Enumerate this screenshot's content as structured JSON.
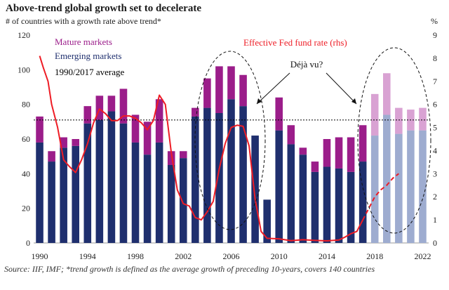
{
  "title": "Above-trend global growth set to decelerate",
  "left_axis_label": "# of countries with a growth rate above trend*",
  "right_axis_label": "%",
  "source": "Source: IIF, IMF; *trend growth is defined as the average growth of preceding 10-years, covers 140 countries",
  "annotations": {
    "deja_vu": "Déjà vu?",
    "fed_label": "Effective Fed fund rate (rhs)"
  },
  "legend": [
    {
      "label": "Mature markets",
      "color": "#9b1d8a"
    },
    {
      "label": "Emerging markets",
      "color": "#1f2f6e"
    },
    {
      "label": "1990/2017 average",
      "color": "#000000"
    }
  ],
  "colors": {
    "emerging": "#1f2f6e",
    "mature": "#9b1d8a",
    "emerging_forecast": "#9eacd0",
    "mature_forecast": "#d9a2d3",
    "fed": "#ee1c25",
    "average": "#000000"
  },
  "chart_data": {
    "type": "bar",
    "stacked": true,
    "x": [
      1990,
      1991,
      1992,
      1993,
      1994,
      1995,
      1996,
      1997,
      1998,
      1999,
      2000,
      2001,
      2002,
      2003,
      2004,
      2005,
      2006,
      2007,
      2008,
      2009,
      2010,
      2011,
      2012,
      2013,
      2014,
      2015,
      2016,
      2017,
      2018,
      2019,
      2020,
      2021,
      2022
    ],
    "x_tick_labels": [
      "1990",
      "1994",
      "1998",
      "2002",
      "2006",
      "2010",
      "2014",
      "2018",
      "2022"
    ],
    "forecast_from": 2018,
    "series": [
      {
        "name": "Emerging markets",
        "values": [
          58,
          47,
          55,
          56,
          69,
          71,
          76,
          69,
          58,
          51,
          58,
          45,
          49,
          73,
          78,
          75,
          83,
          79,
          62,
          25,
          65,
          57,
          51,
          41,
          44,
          43,
          41,
          47,
          62,
          74,
          63,
          65,
          65
        ]
      },
      {
        "name": "Mature markets",
        "values": [
          15,
          6,
          6,
          4,
          10,
          14,
          9,
          20,
          16,
          19,
          25,
          8,
          4,
          5,
          17,
          27,
          19,
          18,
          0,
          0,
          19,
          11,
          4,
          6,
          16,
          18,
          20,
          21,
          24,
          24,
          15,
          12,
          13
        ]
      }
    ],
    "average_line": 71,
    "fed_funds_rate": {
      "name": "Effective Fed fund rate (rhs)",
      "x": [
        1990,
        1990.3,
        1990.7,
        1991,
        1991.5,
        1992,
        1992.5,
        1993,
        1993.5,
        1994,
        1994.5,
        1995,
        1995.5,
        1996,
        1996.5,
        1997,
        1997.5,
        1998,
        1998.5,
        1999,
        1999.5,
        2000,
        2000.5,
        2001,
        2001.5,
        2002,
        2002.5,
        2003,
        2003.5,
        2004,
        2004.5,
        2005,
        2005.5,
        2006,
        2006.5,
        2007,
        2007.5,
        2008,
        2008.5,
        2009,
        2010,
        2011,
        2012,
        2013,
        2014,
        2015,
        2015.5,
        2016,
        2016.5,
        2017
      ],
      "y": [
        8.1,
        7.6,
        7,
        6,
        5,
        3.6,
        3.3,
        3.05,
        3.6,
        4.3,
        5.2,
        5.8,
        5.6,
        5.3,
        5.3,
        5.5,
        5.5,
        5.4,
        5.2,
        4.9,
        5.3,
        6.4,
        6,
        3.9,
        2.3,
        1.7,
        1.6,
        1.1,
        1.0,
        1.35,
        1.8,
        3.2,
        4.3,
        5.0,
        5.1,
        5.05,
        4.2,
        1.9,
        0.5,
        0.2,
        0.18,
        0.1,
        0.14,
        0.11,
        0.09,
        0.13,
        0.25,
        0.4,
        0.5,
        1.0
      ]
    },
    "fed_funds_forecast": {
      "x": [
        2017,
        2017.5,
        2018,
        2018.5,
        2019,
        2019.5,
        2020
      ],
      "y": [
        1.0,
        1.5,
        2.0,
        2.3,
        2.5,
        2.8,
        3.0
      ]
    },
    "y_left": {
      "ticks": [
        0,
        20,
        40,
        60,
        80,
        100,
        120
      ],
      "range": [
        0,
        120
      ]
    },
    "y_right": {
      "ticks": [
        0,
        1,
        2,
        3,
        4,
        5,
        6,
        7,
        8,
        9
      ],
      "range": [
        0,
        9
      ]
    }
  }
}
